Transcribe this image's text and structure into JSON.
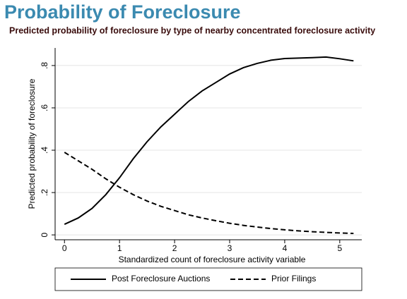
{
  "chart_data": {
    "type": "line",
    "title": "Probability of Foreclosure",
    "subtitle": "Predicted probability of foreclosure by type of nearby concentrated foreclosure activity",
    "x_label": "Standardized count of foreclosure activity variable",
    "y_label": "Predicted probability of foreclosure",
    "x": [
      0,
      0.25,
      0.5,
      0.75,
      1,
      1.25,
      1.5,
      1.75,
      2,
      2.25,
      2.5,
      2.75,
      3,
      3.25,
      3.5,
      3.75,
      4,
      4.25,
      4.5,
      4.75,
      5,
      5.25
    ],
    "series": [
      {
        "name": "Post Foreclosure Auctions",
        "color": "#000000",
        "dash": "solid",
        "values": [
          0.05,
          0.08,
          0.125,
          0.19,
          0.27,
          0.36,
          0.44,
          0.51,
          0.57,
          0.63,
          0.68,
          0.72,
          0.76,
          0.79,
          0.81,
          0.825,
          0.833,
          0.835,
          0.837,
          0.84,
          0.832,
          0.822
        ]
      },
      {
        "name": "Prior Filings",
        "color": "#000000",
        "dash": "dashed",
        "values": [
          0.39,
          0.35,
          0.31,
          0.265,
          0.225,
          0.19,
          0.16,
          0.135,
          0.115,
          0.095,
          0.08,
          0.067,
          0.055,
          0.045,
          0.037,
          0.03,
          0.024,
          0.019,
          0.015,
          0.012,
          0.009,
          0.007
        ]
      }
    ],
    "xlim": [
      -0.17,
      5.4
    ],
    "ylim": [
      -0.023,
      0.883
    ],
    "xticks": [
      0,
      1,
      2,
      3,
      4,
      5
    ],
    "yticks": [
      0,
      {
        "value": 0.2,
        "label": ".2"
      },
      {
        "value": 0.4,
        "label": ".4"
      },
      {
        "value": 0.6,
        "label": ".6"
      },
      {
        "value": 0.8,
        "label": ".8"
      }
    ],
    "grid": true,
    "legend": "bottom"
  }
}
